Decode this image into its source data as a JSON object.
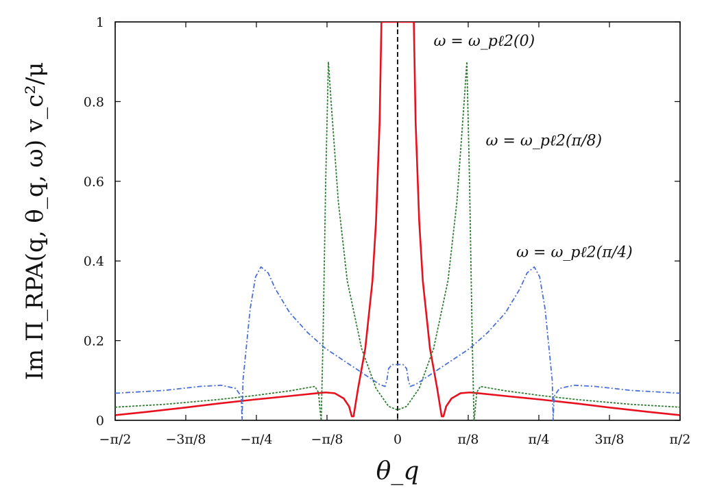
{
  "chart_data": {
    "type": "line",
    "title": "",
    "xlabel": "θ_q",
    "ylabel": "Im Π_RPA(q, θ_q, ω) v_c²/μ",
    "xlim": [
      -1.5708,
      1.5708
    ],
    "ylim": [
      0,
      1
    ],
    "xticks": [
      {
        "value": -1.5708,
        "label": "−π/2"
      },
      {
        "value": -1.1781,
        "label": "−3π/8"
      },
      {
        "value": -0.7854,
        "label": "−π/4"
      },
      {
        "value": -0.3927,
        "label": "−π/8"
      },
      {
        "value": 0,
        "label": "0"
      },
      {
        "value": 0.3927,
        "label": "π/8"
      },
      {
        "value": 0.7854,
        "label": "π/4"
      },
      {
        "value": 1.1781,
        "label": "3π/8"
      },
      {
        "value": 1.5708,
        "label": "π/2"
      }
    ],
    "yticks": [
      {
        "value": 0,
        "label": "0"
      },
      {
        "value": 0.2,
        "label": "0.2"
      },
      {
        "value": 0.4,
        "label": "0.4"
      },
      {
        "value": 0.6,
        "label": "0.6"
      },
      {
        "value": 0.8,
        "label": "0.8"
      },
      {
        "value": 1,
        "label": "1"
      }
    ],
    "grid": false,
    "series": [
      {
        "name": "ω = ω_pℓ2(0)",
        "color": "#e8101e",
        "style": "solid",
        "x": [
          -1.5708,
          -1.4,
          -1.2,
          -1.0,
          -0.8,
          -0.6,
          -0.45,
          -0.4,
          -0.35,
          -0.3,
          -0.27,
          -0.255,
          -0.245,
          -0.22,
          -0.18,
          -0.14,
          -0.12,
          -0.1,
          -0.09,
          0.09,
          0.1,
          0.12,
          0.14,
          0.18,
          0.22,
          0.245,
          0.255,
          0.27,
          0.3,
          0.35,
          0.4,
          0.45,
          0.6,
          0.8,
          1.0,
          1.2,
          1.4,
          1.5708
        ],
        "y": [
          0.013,
          0.021,
          0.031,
          0.042,
          0.052,
          0.061,
          0.068,
          0.07,
          0.068,
          0.055,
          0.035,
          0.01,
          0.01,
          0.08,
          0.18,
          0.35,
          0.5,
          0.75,
          1.0,
          1.0,
          0.75,
          0.5,
          0.35,
          0.18,
          0.08,
          0.01,
          0.01,
          0.035,
          0.055,
          0.068,
          0.07,
          0.068,
          0.061,
          0.052,
          0.042,
          0.031,
          0.021,
          0.013
        ]
      },
      {
        "name": "ω = ω_pℓ2(π/8)",
        "color": "#2e7d32",
        "style": "dashed",
        "x": [
          -1.5708,
          -1.3,
          -1.0,
          -0.8,
          -0.6,
          -0.5,
          -0.46,
          -0.44,
          -0.43,
          -0.425,
          -0.415,
          -0.4,
          -0.385,
          -0.37,
          -0.33,
          -0.28,
          -0.2,
          -0.12,
          -0.05,
          0,
          0.05,
          0.12,
          0.2,
          0.28,
          0.33,
          0.37,
          0.385,
          0.4,
          0.415,
          0.425,
          0.43,
          0.44,
          0.46,
          0.5,
          0.6,
          0.8,
          1.0,
          1.3,
          1.5708
        ],
        "y": [
          0.033,
          0.04,
          0.052,
          0.062,
          0.074,
          0.082,
          0.085,
          0.07,
          0.02,
          0.0,
          0.2,
          0.6,
          0.9,
          0.8,
          0.55,
          0.35,
          0.18,
          0.08,
          0.035,
          0.026,
          0.035,
          0.08,
          0.18,
          0.35,
          0.55,
          0.8,
          0.9,
          0.6,
          0.2,
          0.0,
          0.02,
          0.07,
          0.085,
          0.082,
          0.074,
          0.062,
          0.052,
          0.04,
          0.033
        ]
      },
      {
        "name": "ω = ω_pℓ2(π/4)",
        "color": "#4a6fd8",
        "style": "dash-dot",
        "x": [
          -1.5708,
          -1.3,
          -1.1,
          -0.98,
          -0.9,
          -0.87,
          -0.865,
          -0.86,
          -0.82,
          -0.79,
          -0.76,
          -0.72,
          -0.68,
          -0.6,
          -0.5,
          -0.4,
          -0.3,
          -0.2,
          -0.1,
          -0.07,
          -0.06,
          -0.05,
          -0.03,
          0,
          0.03,
          0.05,
          0.06,
          0.07,
          0.1,
          0.2,
          0.3,
          0.4,
          0.5,
          0.6,
          0.68,
          0.72,
          0.76,
          0.79,
          0.82,
          0.86,
          0.865,
          0.87,
          0.9,
          0.98,
          1.1,
          1.3,
          1.5708
        ],
        "y": [
          0.068,
          0.075,
          0.085,
          0.088,
          0.08,
          0.06,
          0.0,
          0.1,
          0.28,
          0.36,
          0.385,
          0.37,
          0.33,
          0.27,
          0.22,
          0.18,
          0.15,
          0.12,
          0.09,
          0.085,
          0.1,
          0.13,
          0.14,
          0.14,
          0.14,
          0.13,
          0.1,
          0.085,
          0.09,
          0.12,
          0.15,
          0.18,
          0.22,
          0.27,
          0.33,
          0.37,
          0.385,
          0.36,
          0.28,
          0.1,
          0.0,
          0.06,
          0.08,
          0.088,
          0.085,
          0.075,
          0.068
        ]
      }
    ],
    "annotations": [
      {
        "text": "ω = ω_pℓ2(0)",
        "x": 0.2,
        "y": 0.94
      },
      {
        "text": "ω = ω_pℓ2(π/8)",
        "x": 0.49,
        "y": 0.69
      },
      {
        "text": "ω = ω_pℓ2(π/4)",
        "x": 0.66,
        "y": 0.41
      }
    ],
    "reference_lines": [
      {
        "orientation": "vertical",
        "x": 0,
        "style": "dashed",
        "color": "#000000"
      }
    ]
  }
}
